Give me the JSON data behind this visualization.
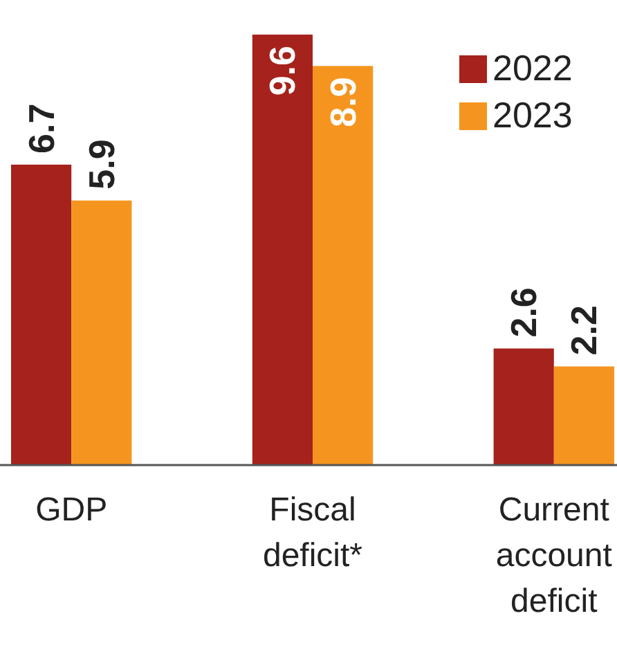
{
  "chart_data": {
    "type": "bar",
    "categories": [
      "GDP",
      "Fiscal deficit*",
      "Current account deficit"
    ],
    "series": [
      {
        "name": "2022",
        "color": "#a6221c",
        "values": [
          6.7,
          9.6,
          2.6
        ]
      },
      {
        "name": "2023",
        "color": "#f5951f",
        "values": [
          5.9,
          8.9,
          2.2
        ]
      }
    ],
    "data_labels": true,
    "legend": "top right"
  }
}
